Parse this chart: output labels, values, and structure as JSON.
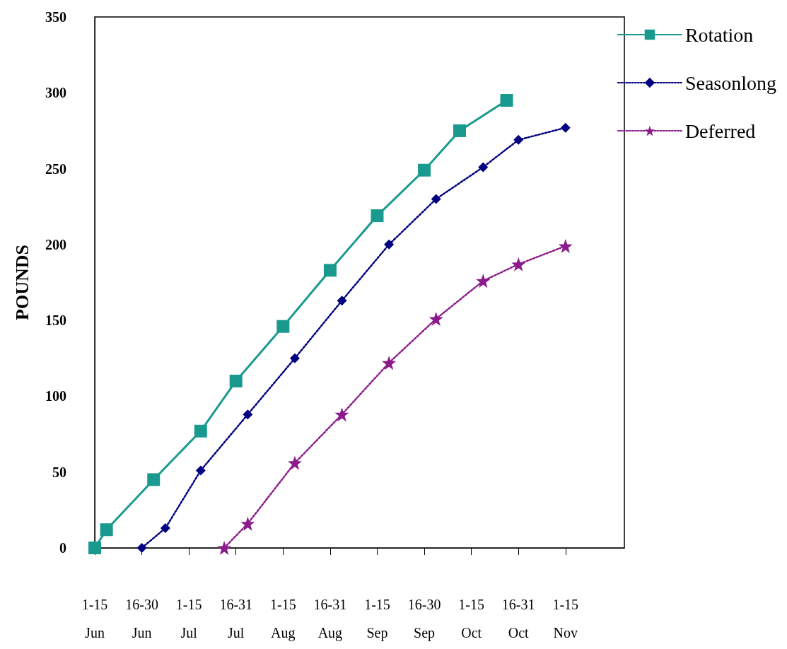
{
  "chart_data": {
    "type": "line",
    "ylabel": "POUNDS",
    "categories": [
      "1-15\nJun",
      null,
      null,
      null,
      "16-30\nJun",
      null,
      null,
      null,
      "1-15\nJul",
      null,
      null,
      null,
      "16-31\nJul",
      null,
      null,
      null,
      "1-15\nAug",
      null,
      null,
      null,
      "16-31\nAug",
      null,
      null,
      null,
      "1-15\nSep",
      null,
      null,
      null,
      "16-30\nSep",
      null,
      null,
      null,
      "1-15\nOct",
      null,
      null,
      null,
      "16-31\nOct",
      null,
      null,
      null,
      "1-15\nNov",
      null,
      null,
      null,
      null,
      null
    ],
    "ylim": [
      0,
      350
    ],
    "yticks": [
      0,
      50,
      100,
      150,
      200,
      250,
      300,
      350
    ],
    "grid": false,
    "legend": "top right",
    "series": [
      {
        "name": "Rotation",
        "color": "#1a9a8f",
        "marker": "square",
        "line_style": "solid",
        "values": [
          0,
          12,
          null,
          null,
          null,
          45,
          null,
          null,
          null,
          77,
          null,
          null,
          110,
          null,
          null,
          null,
          146,
          null,
          null,
          null,
          183,
          null,
          null,
          null,
          219,
          null,
          null,
          null,
          249,
          null,
          null,
          275,
          null,
          null,
          null,
          295,
          null,
          null,
          null,
          null,
          null,
          null,
          null,
          null,
          null,
          null
        ]
      },
      {
        "name": "Seasonlong",
        "color": "#000080",
        "marker": "diamond",
        "line_style": "dotted",
        "values": [
          null,
          null,
          null,
          null,
          0,
          null,
          13,
          null,
          null,
          51,
          null,
          null,
          null,
          88,
          null,
          null,
          null,
          125,
          null,
          null,
          null,
          163,
          null,
          null,
          null,
          200,
          null,
          null,
          null,
          230,
          null,
          null,
          null,
          251,
          null,
          null,
          269,
          null,
          null,
          null,
          277,
          null,
          null,
          null,
          null,
          null
        ]
      },
      {
        "name": "Deferred",
        "color": "#8b1a8b",
        "marker": "star",
        "line_style": "dotted",
        "values": [
          null,
          null,
          null,
          null,
          null,
          null,
          null,
          null,
          null,
          null,
          null,
          0,
          null,
          16,
          null,
          null,
          null,
          56,
          null,
          null,
          null,
          88,
          null,
          null,
          null,
          122,
          null,
          null,
          null,
          151,
          null,
          null,
          null,
          176,
          null,
          null,
          187,
          null,
          null,
          null,
          199,
          null,
          null,
          null,
          null,
          null
        ]
      }
    ]
  }
}
